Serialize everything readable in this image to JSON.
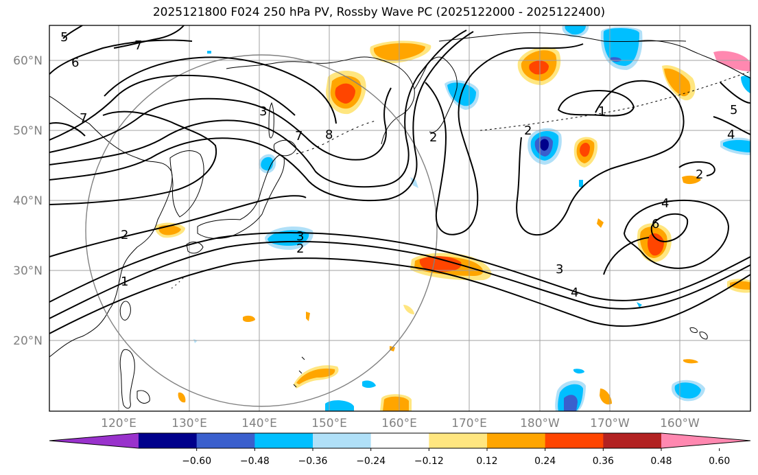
{
  "title": "2025121800 F024 250 hPa PV, Rossby Wave PC (2025122000 - 2025122400)",
  "axes": {
    "lon_ticks": [
      "120°E",
      "130°E",
      "140°E",
      "150°E",
      "160°E",
      "170°E",
      "180°W",
      "170°W",
      "160°W"
    ],
    "lat_ticks": [
      "60°N",
      "50°N",
      "40°N",
      "30°N",
      "20°N"
    ],
    "lon_range_deg_east": [
      110,
      210
    ],
    "lat_range": [
      10,
      65
    ],
    "grid": true
  },
  "colorbar": {
    "tick_labels": [
      "−0.60",
      "−0.48",
      "−0.36",
      "−0.24",
      "−0.12",
      "0.12",
      "0.24",
      "0.36",
      "0.48",
      "0.60"
    ],
    "colors": [
      "#9932cc",
      "#00008b",
      "#3a5fcd",
      "#00bfff",
      "#b0e0f8",
      "#ffffff",
      "#ffe680",
      "#ffa500",
      "#ff4500",
      "#b22222",
      "#ff88b0"
    ],
    "extend": "both"
  },
  "contour_labels": [
    "6",
    "7",
    "5",
    "2",
    "1",
    "7",
    "8",
    "2",
    "3",
    "6",
    "7",
    "2",
    "1",
    "4",
    "5",
    "4",
    "2",
    "3",
    "4",
    "3",
    "2"
  ],
  "colors": {
    "frame": "#000000",
    "grid": "#a0a0a0",
    "tick_text": "#808080",
    "circle": "#808080"
  }
}
